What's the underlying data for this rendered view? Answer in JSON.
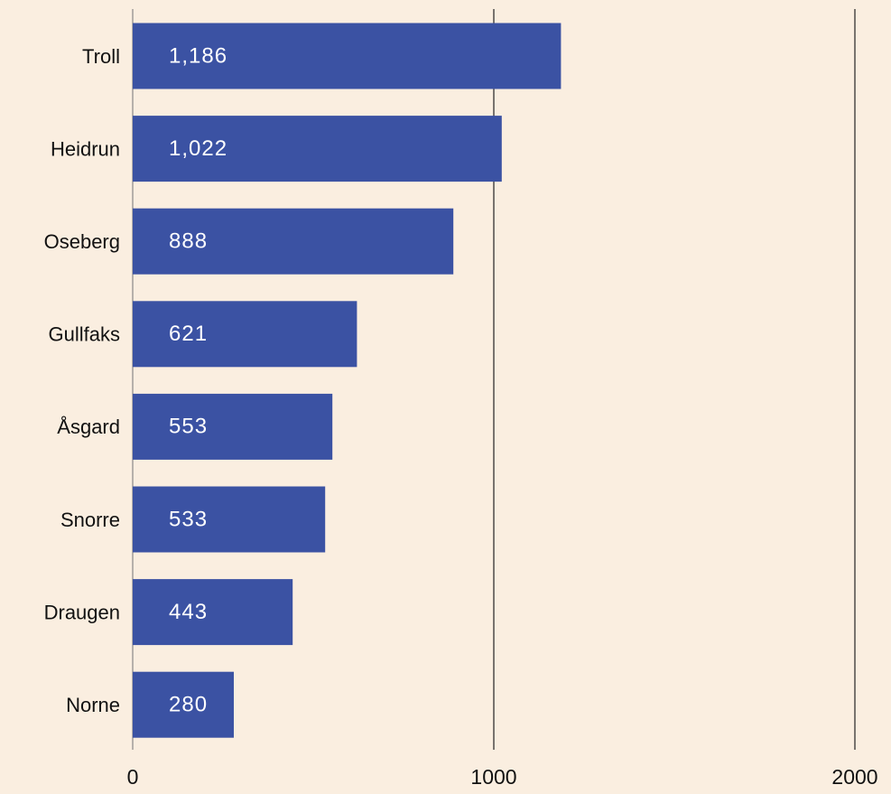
{
  "chart_data": {
    "type": "bar",
    "orientation": "horizontal",
    "categories": [
      "Troll",
      "Heidrun",
      "Oseberg",
      "Gullfaks",
      "Åsgard",
      "Snorre",
      "Draugen",
      "Norne"
    ],
    "values": [
      1186,
      1022,
      888,
      621,
      553,
      533,
      443,
      280
    ],
    "value_labels": [
      "1,186",
      "1,022",
      "888",
      "621",
      "553",
      "533",
      "443",
      "280"
    ],
    "color": "#3b52a3",
    "xlim": [
      0,
      2000
    ],
    "xticks": [
      0,
      1000,
      2000
    ],
    "grid": true
  }
}
